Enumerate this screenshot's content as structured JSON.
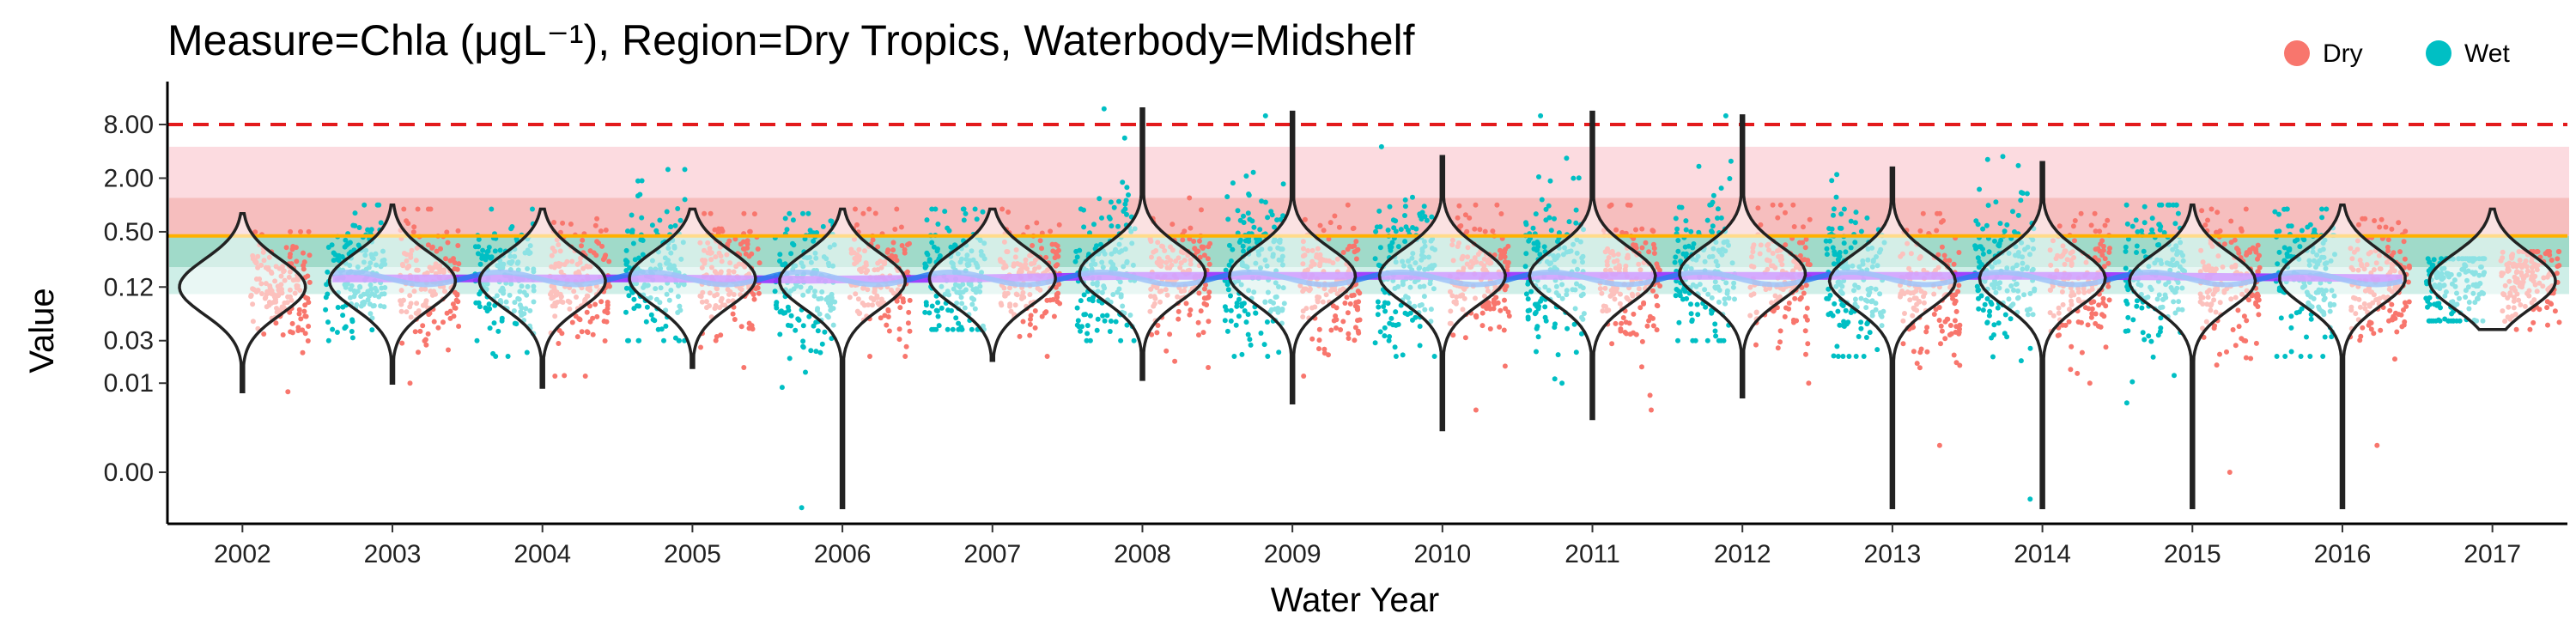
{
  "chart_data": {
    "type": "scatter",
    "title": "Measure=Chla (μgL⁻¹), Region=Dry Tropics, Waterbody=Midshelf",
    "xlabel": "Water Year",
    "ylabel": "Value",
    "y_scale": "log",
    "x_tick_labels": [
      "2002",
      "2003",
      "2004",
      "2005",
      "2006",
      "2007",
      "2008",
      "2009",
      "2010",
      "2011",
      "2012",
      "2013",
      "2014",
      "2015",
      "2016",
      "2017"
    ],
    "y_ticks": [
      0.001,
      0.01,
      0.03,
      0.12,
      0.5,
      2,
      8
    ],
    "y_tick_labels": [
      "0.00",
      "0.01",
      "0.03",
      "0.12",
      "0.50",
      "2.00",
      "8.00"
    ],
    "ylim": [
      0.0005,
      20
    ],
    "legend": {
      "position": "top-right",
      "entries": [
        {
          "name": "Dry",
          "color": "#F8766D"
        },
        {
          "name": "Wet",
          "color": "#00BFC4"
        }
      ]
    },
    "reference_lines": [
      {
        "value": 8,
        "style": "dashed",
        "color": "#E31A1C"
      },
      {
        "value": 0.45,
        "style": "solid",
        "color": "#FFB000"
      }
    ],
    "guideline_bands": [
      {
        "from": 1.2,
        "to": 4.5,
        "color": "#FBD5DA"
      },
      {
        "from": 0.45,
        "to": 1.2,
        "color": "#F5B3B3"
      },
      {
        "from": 0.2,
        "to": 0.45,
        "color": "#8FD3C0"
      },
      {
        "from": 0.1,
        "to": 0.2,
        "color": "#C6EBE3"
      }
    ],
    "series": [
      {
        "name": "Dry",
        "color": "#F8766D",
        "years": [
          "2002",
          "2003",
          "2004",
          "2005",
          "2006",
          "2007",
          "2008",
          "2009",
          "2010",
          "2011",
          "2012",
          "2013",
          "2014",
          "2015",
          "2016",
          "2017"
        ],
        "median": [
          0.12,
          0.14,
          0.14,
          0.15,
          0.14,
          0.15,
          0.15,
          0.14,
          0.15,
          0.14,
          0.15,
          0.13,
          0.14,
          0.13,
          0.14,
          0.15
        ],
        "q1": [
          0.07,
          0.08,
          0.08,
          0.08,
          0.08,
          0.09,
          0.09,
          0.08,
          0.09,
          0.08,
          0.09,
          0.07,
          0.08,
          0.07,
          0.08,
          0.1
        ],
        "q3": [
          0.2,
          0.25,
          0.24,
          0.26,
          0.24,
          0.26,
          0.28,
          0.26,
          0.28,
          0.26,
          0.28,
          0.24,
          0.25,
          0.24,
          0.25,
          0.22
        ],
        "min": [
          0.008,
          0.01,
          0.012,
          0.015,
          0.02,
          0.02,
          0.015,
          0.012,
          0.005,
          0.005,
          0.01,
          0.002,
          0.01,
          0.001,
          0.002,
          0.04
        ],
        "max": [
          0.5,
          0.9,
          0.7,
          0.8,
          0.9,
          0.9,
          1.2,
          1.0,
          1.0,
          1.0,
          1.0,
          0.8,
          0.8,
          0.9,
          0.7,
          0.3
        ]
      },
      {
        "name": "Wet",
        "color": "#00BFC4",
        "years": [
          "2003",
          "2004",
          "2005",
          "2006",
          "2007",
          "2008",
          "2009",
          "2010",
          "2011",
          "2012",
          "2013",
          "2014",
          "2015",
          "2016",
          "2017"
        ],
        "median": [
          0.15,
          0.15,
          0.16,
          0.14,
          0.16,
          0.2,
          0.2,
          0.18,
          0.2,
          0.2,
          0.16,
          0.17,
          0.16,
          0.16,
          0.12
        ],
        "q1": [
          0.09,
          0.09,
          0.09,
          0.07,
          0.09,
          0.11,
          0.11,
          0.1,
          0.11,
          0.11,
          0.09,
          0.1,
          0.09,
          0.09,
          0.07
        ],
        "q3": [
          0.3,
          0.3,
          0.32,
          0.28,
          0.32,
          0.5,
          0.5,
          0.42,
          0.5,
          0.5,
          0.35,
          0.4,
          0.35,
          0.33,
          0.2
        ],
        "min": [
          0.03,
          0.02,
          0.03,
          0.0004,
          0.04,
          0.03,
          0.02,
          0.02,
          0.01,
          0.03,
          0.02,
          0.0005,
          0.006,
          0.02,
          0.05
        ],
        "max": [
          1.0,
          0.9,
          2.5,
          0.8,
          0.9,
          12,
          10,
          4.5,
          10,
          10,
          2.2,
          3.5,
          1.0,
          0.9,
          0.25
        ]
      }
    ],
    "violins": {
      "years": [
        "2002",
        "2003",
        "2004",
        "2005",
        "2006",
        "2007",
        "2008",
        "2009",
        "2010",
        "2011",
        "2012",
        "2013",
        "2014",
        "2015",
        "2016",
        "2017"
      ],
      "median": [
        0.12,
        0.14,
        0.14,
        0.15,
        0.14,
        0.15,
        0.17,
        0.16,
        0.16,
        0.16,
        0.17,
        0.14,
        0.15,
        0.14,
        0.15,
        0.14
      ],
      "min": [
        0.008,
        0.01,
        0.009,
        0.015,
        0.0004,
        0.018,
        0.011,
        0.006,
        0.003,
        0.004,
        0.007,
        0.0004,
        0.0004,
        0.0004,
        0.0004,
        0.04
      ],
      "max": [
        0.8,
        1.0,
        0.9,
        0.9,
        0.9,
        0.9,
        12,
        11,
        3.5,
        11,
        10,
        2.6,
        3.0,
        1.0,
        1.0,
        0.9
      ]
    },
    "trend_lines": [
      {
        "name": "overall",
        "color": "#9B30FF",
        "values": [
          0.15,
          0.15,
          0.15,
          0.145,
          0.15,
          0.16,
          0.16,
          0.16,
          0.16,
          0.16,
          0.16,
          0.16,
          0.155,
          0.15
        ]
      },
      {
        "name": "seasonal",
        "color": "#2B7BF0"
      }
    ]
  }
}
